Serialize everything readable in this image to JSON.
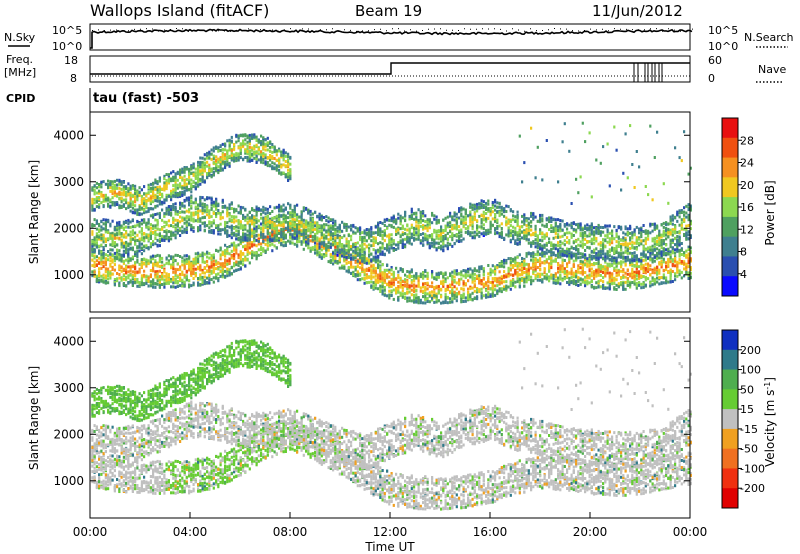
{
  "header": {
    "title": "Wallops Island (fitACF)",
    "beam": "Beam 19",
    "date": "11/Jun/2012"
  },
  "summary": {
    "nsky_label": "N.Sky",
    "nsearch_label": "N.Search",
    "freq_label": "Freq.",
    "freq_unit": "[MHz]",
    "nave_label": "Nave",
    "cpid_label": "CPID",
    "cpid_value": "tau (fast) -503",
    "left_ticks_top": [
      "10^5",
      "10^0"
    ],
    "right_ticks_top": [
      "10^5",
      "10^0"
    ],
    "left_ticks_freq": [
      "18",
      "8"
    ],
    "right_ticks_nave": [
      "60",
      "0"
    ]
  },
  "chart_data": [
    {
      "type": "heatmap",
      "panel": "power",
      "ylabel": "Slant Range [km]",
      "yticks": [
        "1000",
        "2000",
        "3000",
        "4000"
      ],
      "ylim": [
        200,
        4500
      ],
      "xlim": [
        0,
        24
      ],
      "colorbar": {
        "label": "Power [dB]",
        "ticks": [
          "4",
          "8",
          "12",
          "16",
          "20",
          "24",
          "28"
        ],
        "range": [
          0,
          32
        ],
        "colors": [
          "#0a0aff",
          "#2a4fb0",
          "#3f7f8f",
          "#4fa060",
          "#8cd850",
          "#f0c820",
          "#f59020",
          "#f05010",
          "#e81010"
        ]
      },
      "bands": [
        {
          "x": [
            0,
            1,
            2,
            3,
            4,
            5,
            6,
            7,
            8,
            9,
            10,
            11,
            12,
            13,
            14,
            15,
            16,
            17,
            18,
            19,
            20,
            21,
            22,
            23,
            24
          ],
          "y": [
            1250,
            1150,
            1120,
            1100,
            1120,
            1220,
            1500,
            1850,
            2050,
            1800,
            1500,
            1150,
            850,
            780,
            760,
            800,
            900,
            1100,
            1200,
            1180,
            1100,
            1050,
            1100,
            1200,
            1300
          ],
          "power": 24
        },
        {
          "x": [
            0,
            1,
            2,
            3,
            4,
            5,
            6,
            7,
            8,
            9,
            10,
            11,
            12,
            13,
            14,
            15,
            16,
            17,
            18,
            19,
            20,
            21,
            22,
            23,
            24
          ],
          "y": [
            1900,
            1800,
            1850,
            2100,
            2350,
            2300,
            2150,
            2100,
            2200,
            2000,
            1800,
            1650,
            1900,
            2100,
            1900,
            2150,
            2300,
            2050,
            1950,
            1800,
            1750,
            1700,
            1700,
            1850,
            2200
          ],
          "power": 18
        },
        {
          "x": [
            0,
            1,
            2,
            3,
            4,
            5,
            6,
            7,
            8
          ],
          "y": [
            2700,
            2800,
            2600,
            2900,
            3100,
            3500,
            3800,
            3700,
            3300
          ],
          "power": 20
        }
      ]
    },
    {
      "type": "heatmap",
      "panel": "velocity",
      "ylabel": "Slant Range [km]",
      "xlabel": "Time UT",
      "xticks": [
        "00:00",
        "04:00",
        "08:00",
        "12:00",
        "16:00",
        "20:00",
        "00:00"
      ],
      "yticks": [
        "1000",
        "2000",
        "3000",
        "4000"
      ],
      "ylim": [
        200,
        4500
      ],
      "xlim": [
        0,
        24
      ],
      "colorbar": {
        "label": "Velocity [m s^-1]",
        "ticks": [
          "200",
          "100",
          "50",
          "15",
          "-15",
          "-50",
          "-100",
          "-200"
        ],
        "colors": [
          "#1030c0",
          "#2f7a8a",
          "#4fae4f",
          "#66cc33",
          "#c0c0c0",
          "#f0a020",
          "#f07020",
          "#f03010",
          "#e00000"
        ]
      }
    }
  ]
}
